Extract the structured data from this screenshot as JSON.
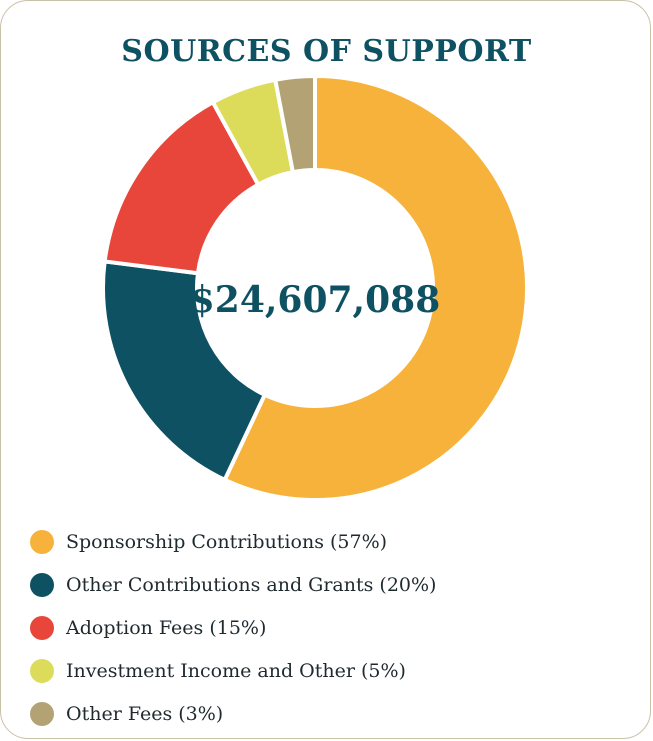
{
  "chart_data": {
    "type": "pie",
    "title": "SOURCES OF SUPPORT",
    "center_label": "$24,607,088",
    "slices": [
      {
        "label": "Sponsorship Contributions (57%)",
        "value": 57,
        "color": "#f7b23b"
      },
      {
        "label": "Other Contributions and Grants (20%)",
        "value": 20,
        "color": "#0e5162"
      },
      {
        "label": "Adoption Fees (15%)",
        "value": 15,
        "color": "#e8463a"
      },
      {
        "label": "Investment Income and Other (5%)",
        "value": 5,
        "color": "#dddc5a"
      },
      {
        "label": "Other Fees (3%)",
        "value": 3,
        "color": "#b3a274"
      }
    ],
    "legend_position": "bottom-left"
  }
}
